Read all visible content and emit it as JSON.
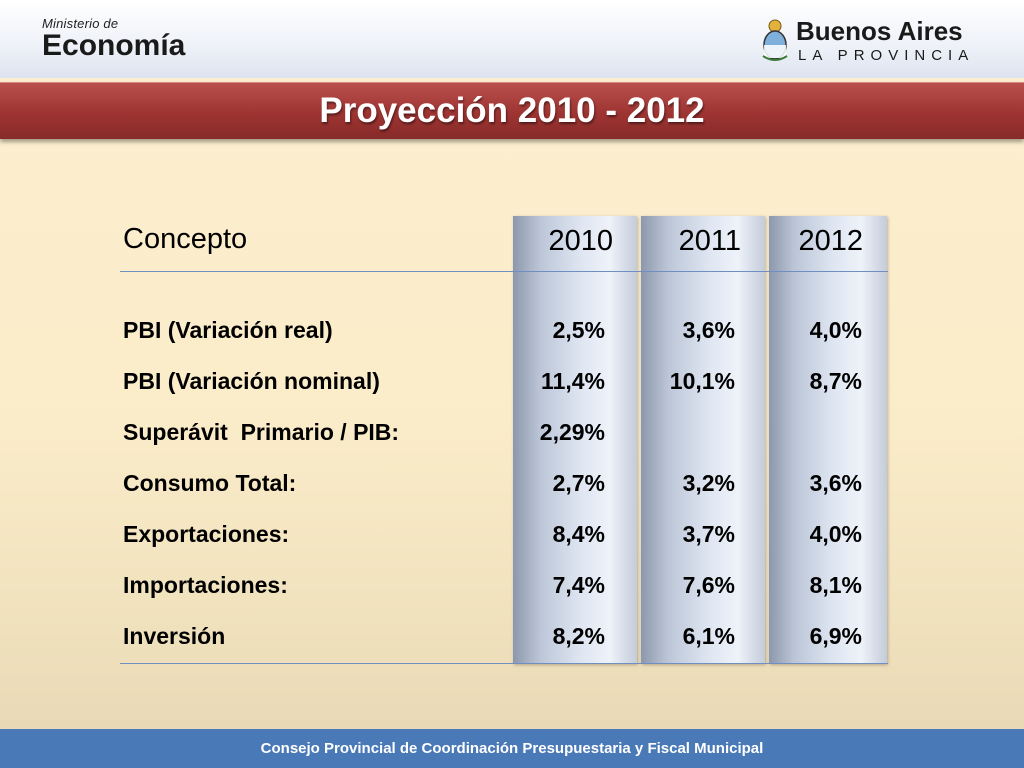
{
  "header": {
    "ministry_small": "Ministerio de",
    "ministry_big": "Economía",
    "province_big": "Buenos Aires",
    "province_small": "LA PROVINCIA"
  },
  "title": "Proyección 2010 - 2012",
  "table": {
    "concept_header": "Concepto",
    "years": [
      "2010",
      "2011",
      "2012"
    ],
    "rows": [
      {
        "label": "PBI (Variación real)",
        "values": [
          "2,5%",
          "3,6%",
          "4,0%"
        ]
      },
      {
        "label": "PBI (Variación nominal)",
        "values": [
          "11,4%",
          "10,1%",
          "8,7%"
        ]
      },
      {
        "label": "Superávit  Primario / PIB:",
        "values": [
          "2,29%",
          "",
          ""
        ]
      },
      {
        "label": "Consumo Total:",
        "values": [
          "2,7%",
          "3,2%",
          "3,6%"
        ]
      },
      {
        "label": "Exportaciones:",
        "values": [
          "8,4%",
          "3,7%",
          "4,0%"
        ]
      },
      {
        "label": "Importaciones:",
        "values": [
          "7,4%",
          "7,6%",
          "8,1%"
        ]
      },
      {
        "label": "Inversión",
        "values": [
          "8,2%",
          "6,1%",
          "6,9%"
        ]
      }
    ]
  },
  "footer": "Consejo Provincial de Coordinación Presupuestaria y Fiscal Municipal",
  "colors": {
    "title_bar": "#9e3432",
    "footer_bar": "#4a79b8",
    "rule": "#6e8fc0"
  }
}
